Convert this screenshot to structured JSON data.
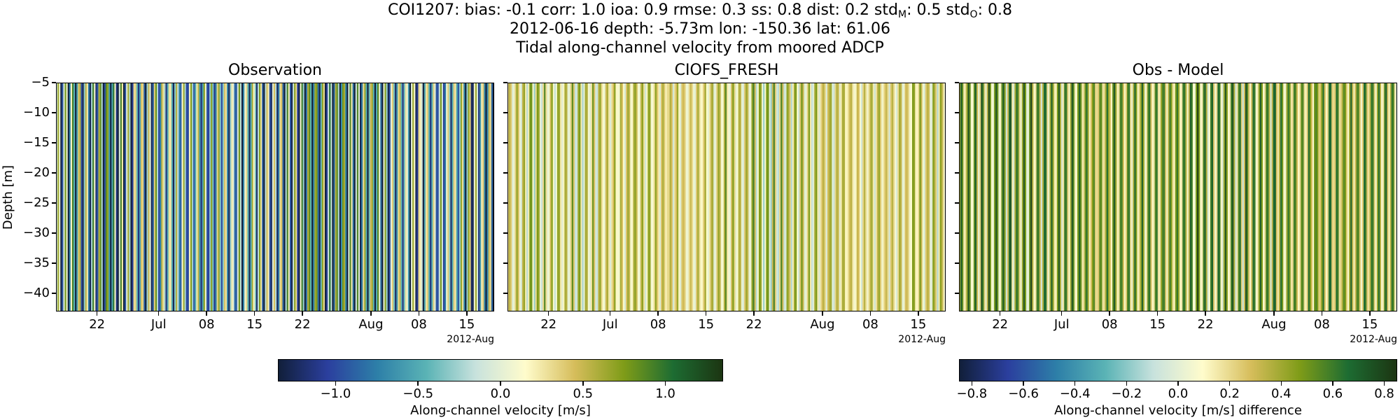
{
  "title": {
    "line1_prefix": "COI1207: bias: -0.1  corr: 1.0  ioa: 0.9  rmse: 0.3  ss: 0.8  dist: 0.2  std",
    "line1_sub_m": "M",
    "line1_mid": ": 0.5  std",
    "line1_sub_o": "O",
    "line1_suffix": ": 0.8",
    "line2": "2012-06-16 depth: -5.73m lon: -150.36 lat: 61.06",
    "line3": "Tidal along-channel velocity from moored ADCP"
  },
  "chart_data": [
    {
      "type": "heatmap",
      "title": "Observation",
      "ylabel": "Depth [m]",
      "ylim": [
        -43,
        -5
      ],
      "yticks": [
        -5,
        -10,
        -15,
        -20,
        -25,
        -30,
        -35,
        -40
      ],
      "xlim": [
        "2012-06-16",
        "2012-08-19"
      ],
      "xticks": [
        {
          "date": "2012-06-22",
          "label": "22"
        },
        {
          "date": "2012-07-01",
          "label": "Jul"
        },
        {
          "date": "2012-07-08",
          "label": "08"
        },
        {
          "date": "2012-07-15",
          "label": "15"
        },
        {
          "date": "2012-07-22",
          "label": "22"
        },
        {
          "date": "2012-08-01",
          "label": "Aug"
        },
        {
          "date": "2012-08-08",
          "label": "08"
        },
        {
          "date": "2012-08-15",
          "label": "15"
        }
      ],
      "x_offset_label": "2012-Aug",
      "colormap": "delta",
      "vrange": [
        -1.35,
        1.35
      ],
      "pattern": "vertical tidal stripes, full range, blue and green dominant"
    },
    {
      "type": "heatmap",
      "title": "CIOFS_FRESH",
      "ylim": [
        -43,
        -5
      ],
      "yticks": [
        -5,
        -10,
        -15,
        -20,
        -25,
        -30,
        -35,
        -40
      ],
      "xlim": [
        "2012-06-16",
        "2012-08-19"
      ],
      "xticks": [
        {
          "date": "2012-06-22",
          "label": "22"
        },
        {
          "date": "2012-07-01",
          "label": "Jul"
        },
        {
          "date": "2012-07-08",
          "label": "08"
        },
        {
          "date": "2012-07-15",
          "label": "15"
        },
        {
          "date": "2012-07-22",
          "label": "22"
        },
        {
          "date": "2012-08-01",
          "label": "Aug"
        },
        {
          "date": "2012-08-08",
          "label": "08"
        },
        {
          "date": "2012-08-15",
          "label": "15"
        }
      ],
      "x_offset_label": "2012-Aug",
      "colormap": "delta",
      "vrange": [
        -1.35,
        1.35
      ],
      "pattern": "vertical tidal stripes, weaker amplitude, green and yellow dominant"
    },
    {
      "type": "heatmap",
      "title": "Obs - Model",
      "ylim": [
        -43,
        -5
      ],
      "yticks": [
        -5,
        -10,
        -15,
        -20,
        -25,
        -30,
        -35,
        -40
      ],
      "xlim": [
        "2012-06-16",
        "2012-08-19"
      ],
      "xticks": [
        {
          "date": "2012-06-22",
          "label": "22"
        },
        {
          "date": "2012-07-01",
          "label": "Jul"
        },
        {
          "date": "2012-07-08",
          "label": "08"
        },
        {
          "date": "2012-07-15",
          "label": "15"
        },
        {
          "date": "2012-07-22",
          "label": "22"
        },
        {
          "date": "2012-08-01",
          "label": "Aug"
        },
        {
          "date": "2012-08-08",
          "label": "08"
        },
        {
          "date": "2012-08-15",
          "label": "15"
        }
      ],
      "x_offset_label": "2012-Aug",
      "colormap": "delta",
      "vrange": [
        -0.85,
        0.85
      ],
      "pattern": "vertical stripes, dark green and yellow alternating"
    }
  ],
  "colorbars": [
    {
      "label": "Along-channel velocity [m/s]",
      "vrange": [
        -1.35,
        1.35
      ],
      "ticks": [
        {
          "value": -1.0,
          "label": "−1.0"
        },
        {
          "value": -0.5,
          "label": "−0.5"
        },
        {
          "value": 0.0,
          "label": "0.0"
        },
        {
          "value": 0.5,
          "label": "0.5"
        },
        {
          "value": 1.0,
          "label": "1.0"
        }
      ]
    },
    {
      "label": "Along-channel velocity [m/s] difference",
      "vrange": [
        -0.85,
        0.85
      ],
      "ticks": [
        {
          "value": -0.8,
          "label": "−0.8"
        },
        {
          "value": -0.6,
          "label": "−0.6"
        },
        {
          "value": -0.4,
          "label": "−0.4"
        },
        {
          "value": -0.2,
          "label": "−0.2"
        },
        {
          "value": 0.0,
          "label": "0.0"
        },
        {
          "value": 0.2,
          "label": "0.2"
        },
        {
          "value": 0.4,
          "label": "0.4"
        },
        {
          "value": 0.6,
          "label": "0.6"
        },
        {
          "value": 0.8,
          "label": "0.8"
        }
      ]
    }
  ],
  "colors": {
    "delta_stops": [
      "#111f3a",
      "#2b3f9e",
      "#2d7fa8",
      "#5ab3b5",
      "#c8e2dd",
      "#fffccc",
      "#d6bd5b",
      "#7f9c18",
      "#1d6c32",
      "#1c3512"
    ]
  }
}
